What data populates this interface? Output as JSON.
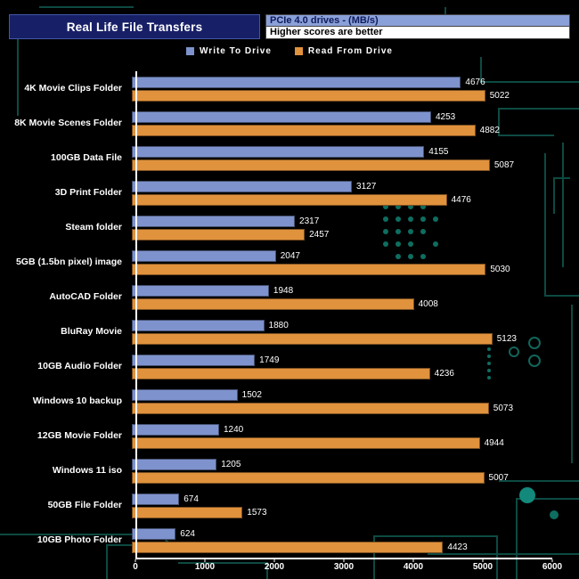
{
  "header": {
    "title": "Real Life File Transfers",
    "info_line1": "PCIe 4.0 drives - (MB/s)",
    "info_line2": "Higher scores are better"
  },
  "legend": [
    {
      "label": "Write To  Drive"
    },
    {
      "label": "Read From  Drive"
    }
  ],
  "chart_data": {
    "type": "bar",
    "orientation": "horizontal",
    "title": "Real Life File Transfers",
    "subtitle": "PCIe 4.0 drives - (MB/s)",
    "note": "Higher scores are better",
    "categories": [
      "4K Movie Clips Folder",
      "8K Movie Scenes Folder",
      "100GB Data File",
      "3D Print Folder",
      "Steam folder",
      "5GB (1.5bn pixel) image",
      "AutoCAD Folder",
      "BluRay Movie",
      "10GB Audio Folder",
      "Windows 10 backup",
      "12GB Movie Folder",
      "Windows 11 iso",
      "50GB File Folder",
      "10GB Photo Folder"
    ],
    "series": [
      {
        "name": "Write To Drive",
        "color": "#7e93cd",
        "values": [
          4676,
          4253,
          4155,
          3127,
          2317,
          2047,
          1948,
          1880,
          1749,
          1502,
          1240,
          1205,
          674,
          624
        ]
      },
      {
        "name": "Read From Drive",
        "color": "#e0923d",
        "values": [
          5022,
          4882,
          5087,
          4476,
          2457,
          5030,
          4008,
          5123,
          4236,
          5073,
          4944,
          5007,
          1573,
          4423
        ]
      }
    ],
    "xlabel": "",
    "ylabel": "",
    "xlim": [
      0,
      6000
    ],
    "xticks": [
      0,
      1000,
      2000,
      3000,
      4000,
      5000,
      6000
    ],
    "grid": false,
    "legend_position": "top",
    "background": "#000000",
    "axis_color": "#ffffff"
  }
}
